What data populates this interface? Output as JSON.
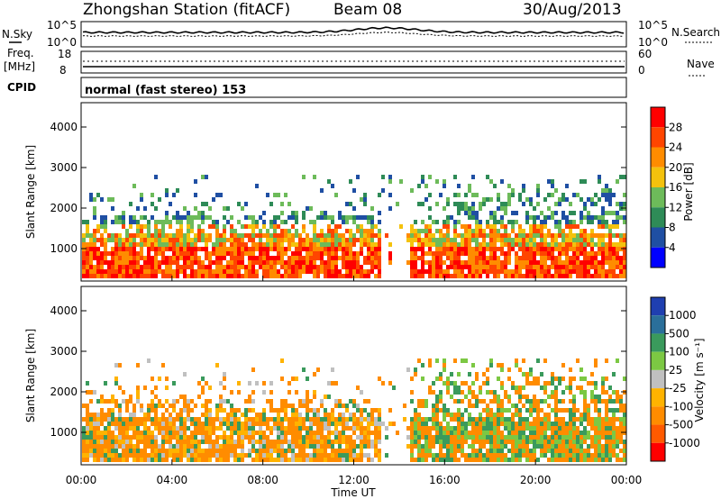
{
  "header": {
    "station": "Zhongshan Station (fitACF)",
    "beam": "Beam 08",
    "date": "30/Aug/2013"
  },
  "noise_panel": {
    "left_label": "N.Sky",
    "right_label": "N.Search",
    "left_ticks": [
      "10^5",
      "10^0"
    ],
    "right_ticks": [
      "10^5",
      "10^0"
    ]
  },
  "freq_panel": {
    "left_label_1": "Freq.",
    "left_label_2": "[MHz]",
    "right_label": "Nave",
    "left_ticks": [
      "18",
      "8"
    ],
    "right_ticks": [
      "60",
      "0"
    ]
  },
  "cpid_panel": {
    "label": "CPID",
    "text": "normal (fast stereo) 153"
  },
  "colors": {
    "power": [
      "#0000ff",
      "#1f4fa3",
      "#2e8b57",
      "#6dbb5a",
      "#f4c20d",
      "#ff8c00",
      "#ff4500",
      "#ff0000"
    ],
    "velocity": [
      "#ff0000",
      "#ff5a00",
      "#ff8c00",
      "#ffb300",
      "#c0c0c0",
      "#7cc843",
      "#3a9a5c",
      "#2a6f9a",
      "#1f3fb0"
    ]
  },
  "chart_data": [
    {
      "type": "heatmap",
      "quantity": "Power",
      "ylabel": "Slant Range [km]",
      "yticks": [
        1000,
        2000,
        3000,
        4000
      ],
      "ylim": [
        200,
        4600
      ],
      "xlim": [
        0,
        24
      ],
      "xticks": [
        "00:00",
        "04:00",
        "08:00",
        "12:00",
        "16:00",
        "20:00",
        "00:00"
      ],
      "colorbar": {
        "label": "Power [dB]",
        "ticks": [
          "28",
          "24",
          "20",
          "16",
          "12",
          "8",
          "4"
        ],
        "range": [
          0,
          30
        ]
      }
    },
    {
      "type": "heatmap",
      "quantity": "Velocity",
      "ylabel": "Slant Range [km]",
      "yticks": [
        1000,
        2000,
        3000,
        4000
      ],
      "ylim": [
        200,
        4600
      ],
      "xlim": [
        0,
        24
      ],
      "xticks": [
        "00:00",
        "04:00",
        "08:00",
        "12:00",
        "16:00",
        "20:00",
        "00:00"
      ],
      "xlabel": "Time UT",
      "colorbar": {
        "label": "Velocity [m s⁻¹]",
        "ticks": [
          "1000",
          "500",
          "100",
          "25",
          "-25",
          "-100",
          "-500",
          "-1000"
        ]
      }
    }
  ]
}
